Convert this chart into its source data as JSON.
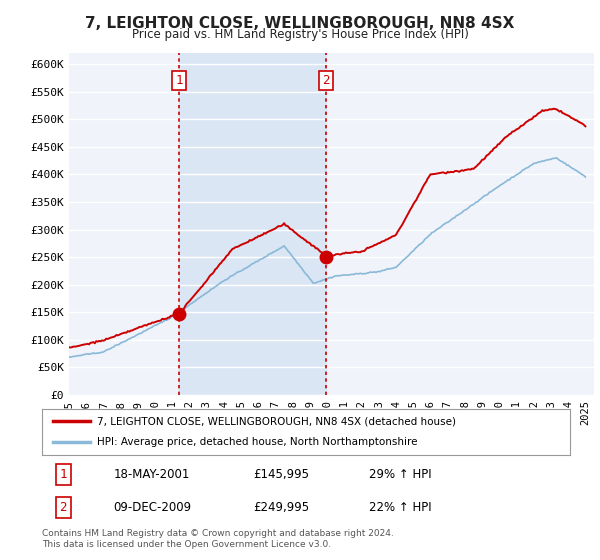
{
  "title": "7, LEIGHTON CLOSE, WELLINGBOROUGH, NN8 4SX",
  "subtitle": "Price paid vs. HM Land Registry's House Price Index (HPI)",
  "ylabel_ticks": [
    "£0",
    "£50K",
    "£100K",
    "£150K",
    "£200K",
    "£250K",
    "£300K",
    "£350K",
    "£400K",
    "£450K",
    "£500K",
    "£550K",
    "£600K"
  ],
  "ytick_vals": [
    0,
    50000,
    100000,
    150000,
    200000,
    250000,
    300000,
    350000,
    400000,
    450000,
    500000,
    550000,
    600000
  ],
  "ylim": [
    0,
    620000
  ],
  "xlim_start": 1995.0,
  "xlim_end": 2025.5,
  "plot_bg_color": "#f0f4fa",
  "grid_color": "#ffffff",
  "shade_color": "#dae6f3",
  "sale1_x": 2001.38,
  "sale1_y": 145995,
  "sale2_x": 2009.94,
  "sale2_y": 249995,
  "sale1_label": "1",
  "sale2_label": "2",
  "vline1_x": 2001.38,
  "vline2_x": 2009.94,
  "vline_color": "#cc0000",
  "line_color_red": "#cc0000",
  "line_color_blue": "#89b8d8",
  "legend1_label": "7, LEIGHTON CLOSE, WELLINGBOROUGH, NN8 4SX (detached house)",
  "legend2_label": "HPI: Average price, detached house, North Northamptonshire",
  "annotation1_date": "18-MAY-2001",
  "annotation1_price": "£145,995",
  "annotation1_hpi": "29% ↑ HPI",
  "annotation2_date": "09-DEC-2009",
  "annotation2_price": "£249,995",
  "annotation2_hpi": "22% ↑ HPI",
  "footer": "Contains HM Land Registry data © Crown copyright and database right 2024.\nThis data is licensed under the Open Government Licence v3.0.",
  "xtick_years": [
    "1995",
    "1996",
    "1997",
    "1998",
    "1999",
    "2000",
    "2001",
    "2002",
    "2003",
    "2004",
    "2005",
    "2006",
    "2007",
    "2008",
    "2009",
    "2010",
    "2011",
    "2012",
    "2013",
    "2014",
    "2015",
    "2016",
    "2017",
    "2018",
    "2019",
    "2020",
    "2021",
    "2022",
    "2023",
    "2024",
    "2025"
  ]
}
